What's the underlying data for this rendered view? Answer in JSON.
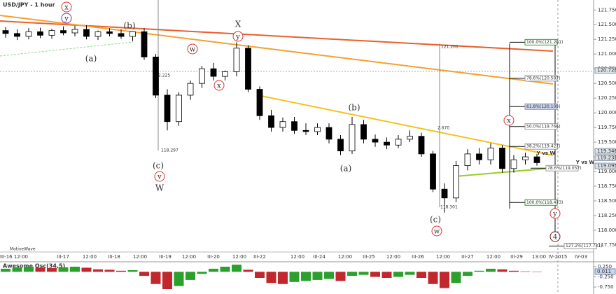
{
  "chart_data": [
    {
      "type": "candlestick",
      "title": "USD/JPY - 1 hour",
      "up_color": "#ffffff",
      "down_color": "#000000",
      "open": [
        121.4,
        121.35,
        121.3,
        121.38,
        121.32,
        121.4,
        121.36,
        121.42,
        121.3,
        121.38,
        121.35,
        121.3,
        121.38,
        120.95,
        120.3,
        119.85,
        120.3,
        120.5,
        120.75,
        120.62,
        120.7,
        121.1,
        120.4,
        119.95,
        119.75,
        119.85,
        119.7,
        119.68,
        119.75,
        119.55,
        119.35,
        119.8,
        119.55,
        119.5,
        119.45,
        119.55,
        119.6,
        119.3,
        118.7,
        118.55,
        119.1,
        119.3,
        119.2,
        119.4,
        119.05,
        119.2,
        119.25
      ],
      "high": [
        121.46,
        121.42,
        121.44,
        121.45,
        121.43,
        121.47,
        121.48,
        121.49,
        121.4,
        121.44,
        121.42,
        121.38,
        121.44,
        121.0,
        120.4,
        120.35,
        120.55,
        120.8,
        120.85,
        120.72,
        121.2,
        121.15,
        120.45,
        120.05,
        119.92,
        119.93,
        119.82,
        119.82,
        119.82,
        119.62,
        119.93,
        119.88,
        119.63,
        119.58,
        119.62,
        119.7,
        119.66,
        119.35,
        118.8,
        119.18,
        119.38,
        119.4,
        119.48,
        119.45,
        119.28,
        119.32,
        119.3
      ],
      "low": [
        121.28,
        121.24,
        121.25,
        121.27,
        121.26,
        121.32,
        121.3,
        121.25,
        121.24,
        121.3,
        121.26,
        121.22,
        120.9,
        120.25,
        119.7,
        119.78,
        120.22,
        120.42,
        120.55,
        120.55,
        120.62,
        120.35,
        119.88,
        119.68,
        119.68,
        119.64,
        119.62,
        119.62,
        119.48,
        119.28,
        119.3,
        119.48,
        119.42,
        119.38,
        119.4,
        119.5,
        119.25,
        118.65,
        118.301,
        118.48,
        119.02,
        119.12,
        119.12,
        118.98,
        118.98,
        119.12,
        119.1
      ],
      "close": [
        121.35,
        121.3,
        121.38,
        121.32,
        121.4,
        121.36,
        121.42,
        121.3,
        121.38,
        121.35,
        121.3,
        121.38,
        120.95,
        120.3,
        119.85,
        120.3,
        120.5,
        120.75,
        120.62,
        120.7,
        121.1,
        120.4,
        119.95,
        119.75,
        119.85,
        119.7,
        119.68,
        119.75,
        119.55,
        119.35,
        119.8,
        119.55,
        119.5,
        119.45,
        119.55,
        119.6,
        119.3,
        118.7,
        118.55,
        119.1,
        119.3,
        119.2,
        119.4,
        119.05,
        119.2,
        119.25,
        119.15
      ],
      "ylim": [
        117.63,
        121.92
      ],
      "yticks": [
        {
          "value": 117.75,
          "label": "117.750"
        },
        {
          "value": 118.0,
          "label": "118.000"
        },
        {
          "value": 118.25,
          "label": "118.250"
        },
        {
          "value": 118.5,
          "label": "118.500"
        },
        {
          "value": 118.75,
          "label": "118.750"
        },
        {
          "value": 119.0,
          "label": "119.000"
        },
        {
          "value": 119.25,
          "label": "119.250"
        },
        {
          "value": 119.5,
          "label": "119.500"
        },
        {
          "value": 119.75,
          "label": "119.750"
        },
        {
          "value": 120.0,
          "label": "120.000"
        },
        {
          "value": 120.25,
          "label": "120.250"
        },
        {
          "value": 120.5,
          "label": "120.500"
        },
        {
          "value": 120.75,
          "label": "120.750"
        },
        {
          "value": 121.0,
          "label": "121.000"
        },
        {
          "value": 121.25,
          "label": "121.250"
        },
        {
          "value": 121.5,
          "label": "121.500"
        },
        {
          "value": 121.75,
          "label": "121.750"
        }
      ],
      "xticks": [
        "III-16 12:00",
        "III-17",
        "12:00",
        "III-18",
        "12:00",
        "III-19",
        "12:00",
        "III-20",
        "12:00",
        "III-22",
        "12:00",
        "III-24",
        "12:00",
        "III-25",
        "12:00",
        "III-26",
        "12:00",
        "III-27",
        "12:00",
        "III-29",
        "13:00",
        "IV-2015",
        "IV-03"
      ],
      "price_labels": [
        {
          "value": 120.72,
          "label": "120.720"
        },
        {
          "value": 119.346,
          "label": "119.346"
        },
        {
          "value": 119.232,
          "label": "119.232"
        },
        {
          "value": 119.095,
          "label": "119.095"
        }
      ],
      "fib_levels": [
        {
          "value": 121.201,
          "label": "100.0%(121.201)"
        },
        {
          "value": 120.587,
          "label": "78.6%(120.587)"
        },
        {
          "value": 120.105,
          "label": "61.8%(120.105)"
        },
        {
          "value": 119.766,
          "label": "50.0%(119.766)"
        },
        {
          "value": 119.427,
          "label": "38.2%(119.427)"
        },
        {
          "value": 119.057,
          "label": "78.6%(119.057)"
        },
        {
          "value": 118.473,
          "label": "100.0%(118.473)"
        },
        {
          "value": 117.731,
          "label": "127.2%(117.731)"
        }
      ],
      "wave_labels": [
        "x",
        "y",
        "(a)",
        "(b)",
        "w",
        "x",
        "X",
        "y",
        "(c)",
        "v",
        "W",
        "(b)",
        "(a)",
        "(c)",
        "w",
        "x",
        "y",
        "4",
        "Y vs W",
        "Y vs W"
      ],
      "annotations": [
        "121.201",
        "2.670",
        "2.225",
        "118.297",
        "118.301",
        "MotiveWave"
      ]
    },
    {
      "type": "bar",
      "title": "Awesome Osc(34,5)",
      "up_color": "#2ca02c",
      "down_color": "#c0282d",
      "values": [
        0.15,
        0.2,
        0.25,
        0.2,
        0.18,
        0.22,
        0.25,
        0.2,
        0.12,
        0.1,
        0.05,
        0.08,
        -0.2,
        -0.6,
        -0.85,
        -0.7,
        -0.4,
        -0.1,
        0.15,
        0.25,
        0.35,
        0.1,
        -0.3,
        -0.55,
        -0.6,
        -0.5,
        -0.45,
        -0.4,
        -0.35,
        -0.45,
        -0.2,
        -0.15,
        -0.25,
        -0.3,
        -0.25,
        -0.15,
        -0.3,
        -0.6,
        -0.8,
        -0.55,
        -0.2,
        0.05,
        0.15,
        0.12,
        0.05,
        0.02,
        0.011
      ],
      "ylim": [
        -1.09,
        0.49
      ],
      "yticks": [
        {
          "value": 0.25,
          "label": "0.250"
        },
        {
          "value": -0.25,
          "label": "-0.250"
        },
        {
          "value": -0.75,
          "label": "-0.750"
        }
      ],
      "marker": {
        "value": 0.011,
        "label": "0.011"
      }
    }
  ]
}
